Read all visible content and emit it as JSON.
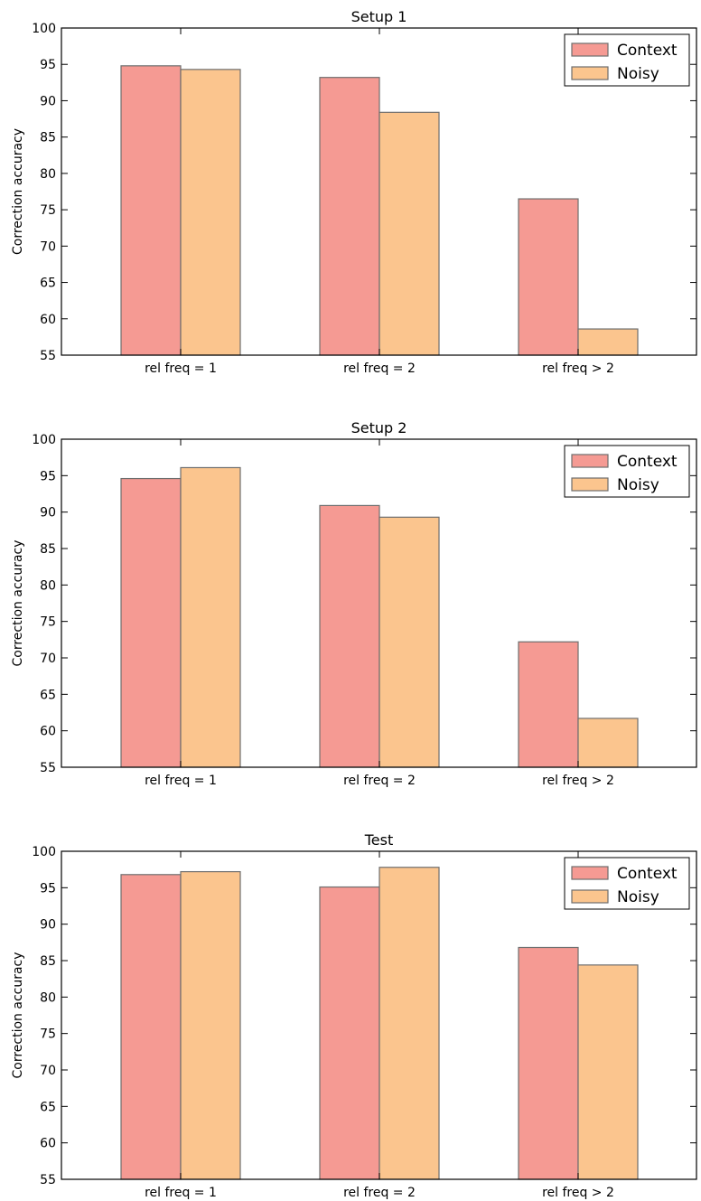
{
  "chart_data": [
    {
      "type": "bar",
      "title": "Setup 1",
      "xlabel": "",
      "ylabel": "Correction accuracy",
      "ylim": [
        55,
        100
      ],
      "yticks": [
        55,
        60,
        65,
        70,
        75,
        80,
        85,
        90,
        95,
        100
      ],
      "categories": [
        "rel freq = 1",
        "rel freq = 2",
        "rel freq > 2"
      ],
      "series": [
        {
          "name": "Context",
          "values": [
            94.8,
            93.2,
            76.5
          ]
        },
        {
          "name": "Noisy",
          "values": [
            94.3,
            88.4,
            58.6
          ]
        }
      ],
      "legend": "top-right",
      "grid": false
    },
    {
      "type": "bar",
      "title": "Setup 2",
      "xlabel": "",
      "ylabel": "Correction accuracy",
      "ylim": [
        55,
        100
      ],
      "yticks": [
        55,
        60,
        65,
        70,
        75,
        80,
        85,
        90,
        95,
        100
      ],
      "categories": [
        "rel freq = 1",
        "rel freq = 2",
        "rel freq > 2"
      ],
      "series": [
        {
          "name": "Context",
          "values": [
            94.6,
            90.9,
            72.2
          ]
        },
        {
          "name": "Noisy",
          "values": [
            96.1,
            89.3,
            61.7
          ]
        }
      ],
      "legend": "top-right",
      "grid": false
    },
    {
      "type": "bar",
      "title": "Test",
      "xlabel": "",
      "ylabel": "Correction accuracy",
      "ylim": [
        55,
        100
      ],
      "yticks": [
        55,
        60,
        65,
        70,
        75,
        80,
        85,
        90,
        95,
        100
      ],
      "categories": [
        "rel freq = 1",
        "rel freq = 2",
        "rel freq > 2"
      ],
      "series": [
        {
          "name": "Context",
          "values": [
            96.8,
            95.1,
            86.8
          ]
        },
        {
          "name": "Noisy",
          "values": [
            97.2,
            97.8,
            84.4
          ]
        }
      ],
      "legend": "top-right",
      "grid": false
    }
  ],
  "colors": {
    "Context": "#f59a93",
    "Noisy": "#fbc58e",
    "bar_edge": "#6e6e6e",
    "axes": "#000000"
  }
}
